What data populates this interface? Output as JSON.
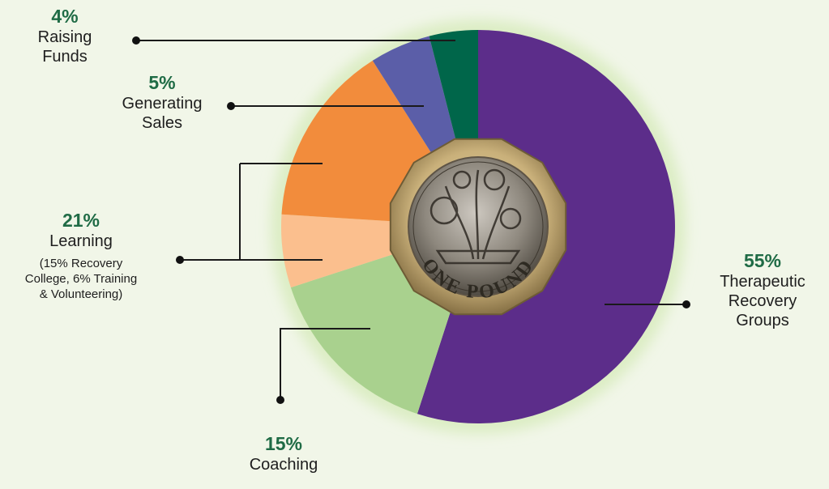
{
  "chart_data": {
    "type": "pie",
    "donut": true,
    "slices": [
      {
        "key": "therapeutic",
        "value": 55,
        "pct_label": "55%",
        "name_lines": [
          "Therapeutic",
          "Recovery",
          "Groups"
        ],
        "color": "#5c2d8a"
      },
      {
        "key": "coaching",
        "value": 15,
        "pct_label": "15%",
        "name_lines": [
          "Coaching"
        ],
        "color": "#a9d18e"
      },
      {
        "key": "learning_training",
        "value": 6,
        "color": "#fbbf8e"
      },
      {
        "key": "learning_college",
        "value": 15,
        "color": "#f28c3c"
      },
      {
        "key": "sales",
        "value": 5,
        "pct_label": "5%",
        "name_lines": [
          "Generating",
          "Sales"
        ],
        "color": "#5b5ea8"
      },
      {
        "key": "funds",
        "value": 4,
        "pct_label": "4%",
        "name_lines": [
          "Raising",
          "Funds"
        ],
        "color": "#00664a"
      }
    ],
    "learning_group": {
      "pct_label": "21%",
      "name": "Learning",
      "note_lines": [
        "(15% Recovery",
        "College, 6% Training",
        "& Volunteering)"
      ]
    },
    "center_image": {
      "icon": "one-pound-coin-icon",
      "coin_text": "ONE POUND"
    },
    "legend": "none"
  }
}
